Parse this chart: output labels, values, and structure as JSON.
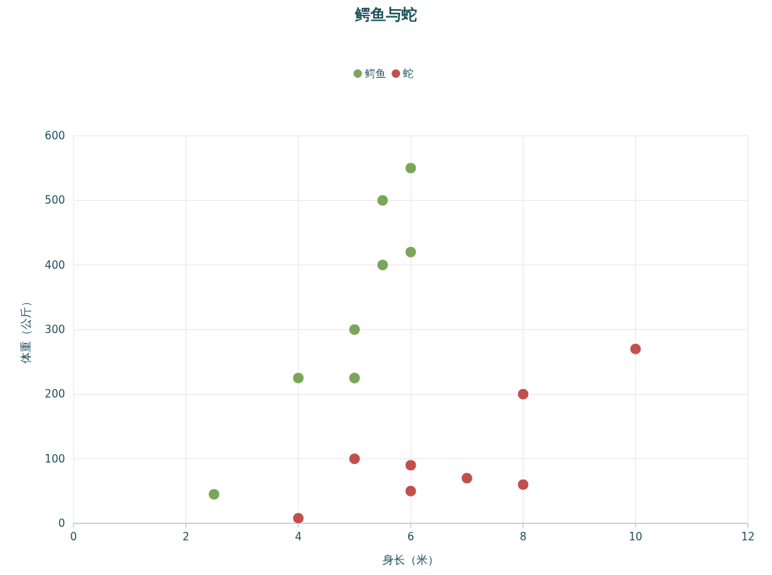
{
  "chart_data": {
    "type": "scatter",
    "title": "鳄鱼与蛇",
    "xlabel": "身长（米）",
    "ylabel": "体重（公斤）",
    "xlim": [
      0,
      12
    ],
    "xticks": [
      0,
      2,
      4,
      6,
      8,
      10,
      12
    ],
    "ylim": [
      0,
      600
    ],
    "yticks": [
      0,
      100,
      200,
      300,
      400,
      500,
      600
    ],
    "grid": true,
    "legend": "top",
    "marker": "circle",
    "series": [
      {
        "name": "鳄鱼",
        "color": "#7aa65a",
        "x": [
          2.5,
          4,
          5,
          5,
          5.5,
          5.5,
          6,
          6
        ],
        "values": [
          45,
          225,
          225,
          300,
          400,
          500,
          420,
          550
        ]
      },
      {
        "name": "蛇",
        "color": "#c0504d",
        "x": [
          4,
          5,
          6,
          6,
          7,
          8,
          8,
          10
        ],
        "values": [
          8,
          100,
          50,
          90,
          70,
          60,
          200,
          270
        ]
      }
    ]
  }
}
